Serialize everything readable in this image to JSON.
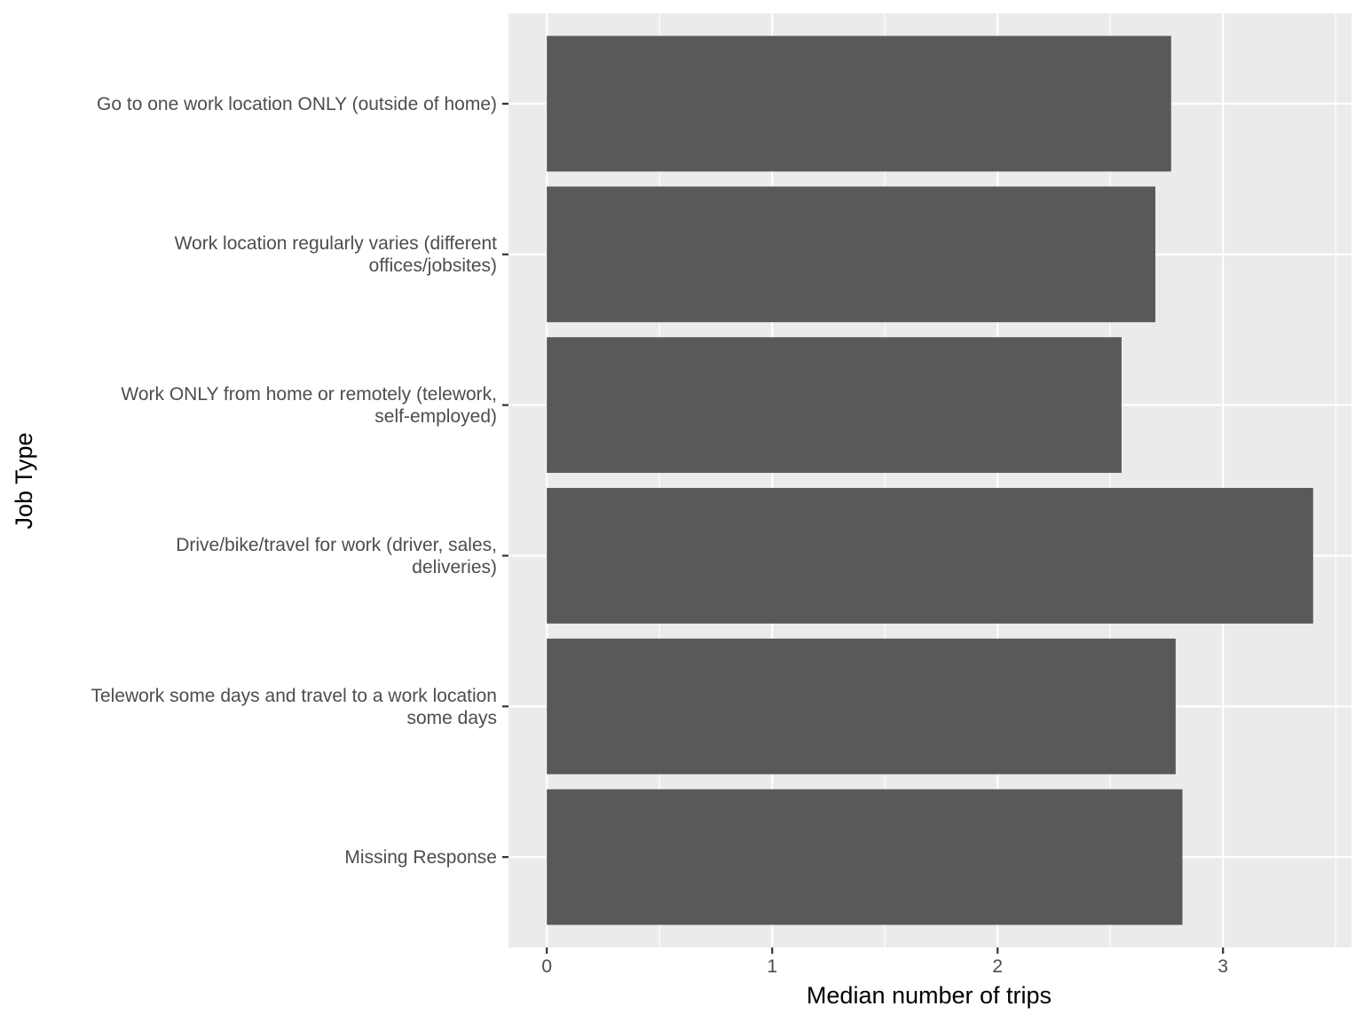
{
  "chart_data": {
    "type": "bar",
    "orientation": "horizontal",
    "title": "",
    "xlabel": "Median number of trips",
    "ylabel": "Job Type",
    "categories": [
      "Go to one work location ONLY (outside of home)",
      "Work location regularly varies (different offices/jobsites)",
      "Work ONLY from home or remotely (telework, self-employed)",
      "Drive/bike/travel for work (driver, sales, deliveries)",
      "Telework some days and travel to a work location some days",
      "Missing Response"
    ],
    "category_label_lines": [
      [
        "Go to one work location ONLY (outside of home)"
      ],
      [
        "Work location regularly varies (different",
        "offices/jobsites)"
      ],
      [
        "Work ONLY from home or remotely (telework,",
        "self-employed)"
      ],
      [
        "Drive/bike/travel for work (driver, sales,",
        "deliveries)"
      ],
      [
        "Telework some days and travel to a work location",
        "some days"
      ],
      [
        "Missing Response"
      ]
    ],
    "values": [
      2.77,
      2.7,
      2.55,
      3.4,
      2.79,
      2.82
    ],
    "xlim": [
      -0.17,
      3.57
    ],
    "xticks": [
      0,
      1,
      2,
      3
    ],
    "xtick_labels": [
      "0",
      "1",
      "2",
      "3"
    ],
    "grid": true,
    "legend": "none",
    "colors": {
      "bar": "#595959",
      "panel_background": "#ebebeb",
      "grid": "#ffffff",
      "tick_label": "#4d4d4d",
      "axis_title": "#000000"
    }
  }
}
